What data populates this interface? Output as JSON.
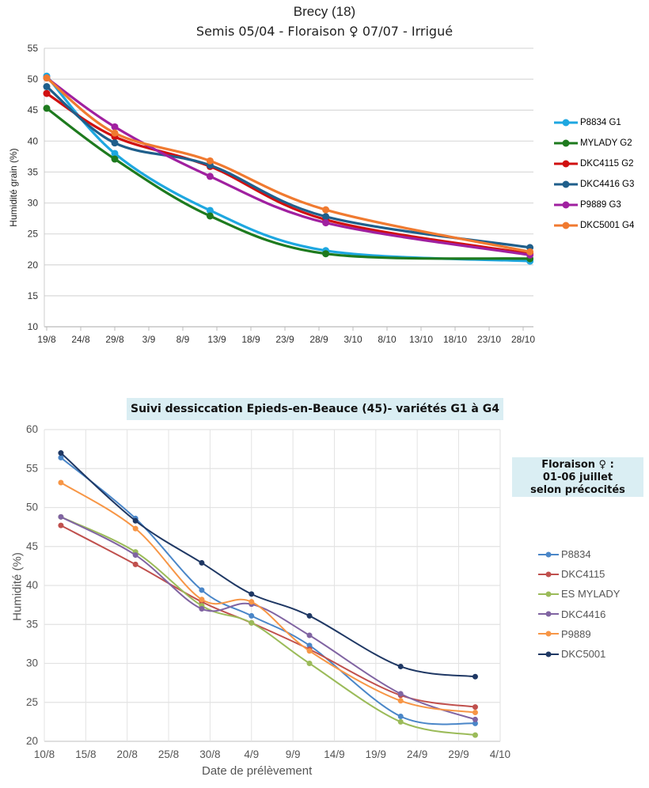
{
  "chart_data": [
    {
      "type": "line",
      "title": "Brecy (18)",
      "subtitle": "Semis 05/04 - Floraison ♀ 07/07  - Irrigué",
      "xlabel": "",
      "ylabel": "Humidité grain (%)",
      "ylim": [
        10,
        55
      ],
      "yticks": [
        10,
        15,
        20,
        25,
        30,
        35,
        40,
        45,
        50,
        55
      ],
      "xticks": [
        "19/8",
        "24/8",
        "29/8",
        "3/9",
        "8/9",
        "13/9",
        "18/9",
        "23/9",
        "28/9",
        "3/10",
        "8/10",
        "13/10",
        "18/10",
        "23/10",
        "28/10"
      ],
      "grid": "horizontal",
      "legend": "right",
      "x": [
        "19/8",
        "29/8",
        "12/9",
        "29/9",
        "29/10"
      ],
      "series": [
        {
          "name": "P8834 G1",
          "color": "#1ea7e0",
          "values": [
            50.5,
            38.0,
            28.8,
            22.3,
            20.6
          ]
        },
        {
          "name": "MYLADY G2",
          "color": "#1e7a1e",
          "values": [
            45.3,
            37.1,
            27.9,
            21.8,
            21.0
          ]
        },
        {
          "name": "DKC4115 G2",
          "color": "#d01010",
          "values": [
            47.7,
            40.7,
            35.9,
            27.3,
            21.8
          ]
        },
        {
          "name": "DKC4416 G3",
          "color": "#1f5f8b",
          "values": [
            48.8,
            39.7,
            36.1,
            27.8,
            22.8
          ]
        },
        {
          "name": "P9889 G3",
          "color": "#a020a0",
          "values": [
            50.2,
            42.3,
            34.3,
            26.8,
            21.6
          ]
        },
        {
          "name": "DKC5001 G4",
          "color": "#f07a30",
          "values": [
            50.2,
            41.3,
            36.8,
            28.9,
            22.1
          ]
        }
      ]
    },
    {
      "type": "line",
      "title": "Suivi dessiccation Epieds-en-Beauce (45)- variétés G1 à G4",
      "annotation": [
        "Floraison ♀ :",
        "01-06 juillet",
        "selon précocités"
      ],
      "xlabel": "Date de prélèvement",
      "ylabel": "Humidité (%)",
      "ylim": [
        20,
        60
      ],
      "yticks": [
        20,
        25,
        30,
        35,
        40,
        45,
        50,
        55,
        60
      ],
      "xticks": [
        "10/8",
        "15/8",
        "20/8",
        "25/8",
        "30/8",
        "4/9",
        "9/9",
        "14/9",
        "19/9",
        "24/9",
        "29/9",
        "4/10"
      ],
      "grid": "both",
      "legend": "right",
      "x": [
        "12/8",
        "21/8",
        "29/8",
        "4/9",
        "11/9",
        "22/9",
        "1/10"
      ],
      "series": [
        {
          "name": "P8834",
          "color": "#4a86c8",
          "values": [
            56.4,
            48.6,
            39.4,
            36.1,
            32.3,
            23.2,
            22.3
          ]
        },
        {
          "name": "DKC4115",
          "color": "#c0504d",
          "values": [
            47.7,
            42.7,
            37.9,
            35.2,
            31.8,
            25.9,
            24.4
          ]
        },
        {
          "name": "ES MYLADY",
          "color": "#9bbb59",
          "values": [
            48.8,
            44.3,
            37.4,
            35.2,
            30.0,
            22.5,
            20.8
          ]
        },
        {
          "name": "DKC4416",
          "color": "#8064a2",
          "values": [
            48.8,
            43.9,
            37.0,
            37.6,
            33.6,
            26.1,
            22.8
          ]
        },
        {
          "name": "P9889",
          "color": "#f79646",
          "values": [
            53.2,
            47.3,
            38.2,
            37.9,
            31.6,
            25.2,
            23.7
          ]
        },
        {
          "name": "DKC5001",
          "color": "#1f3864",
          "values": [
            57.0,
            48.3,
            42.9,
            38.9,
            36.1,
            29.6,
            28.3
          ]
        }
      ]
    }
  ]
}
